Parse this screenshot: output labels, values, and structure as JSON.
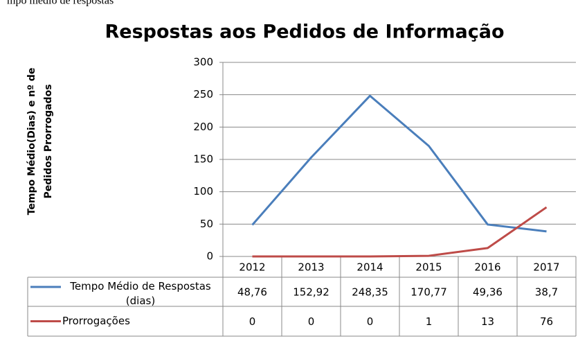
{
  "caption": "mpo médio de respostas",
  "chart_data": {
    "type": "line",
    "title": "Respostas aos Pedidos de Informação",
    "y_label": "Tempo Médio(Dias) e nº de Pedidos Prorrogados",
    "categories": [
      "2012",
      "2013",
      "2014",
      "2015",
      "2016",
      "2017"
    ],
    "series": [
      {
        "name": "Tempo Médio de Respostas (dias)",
        "color": "#4a7ebb",
        "values": [
          48.76,
          152.92,
          248.35,
          170.77,
          49.36,
          38.7
        ],
        "value_labels": [
          "48,76",
          "152,92",
          "248,35",
          "170,77",
          "49,36",
          "38,7"
        ]
      },
      {
        "name": "Prorrogações",
        "color": "#be4b48",
        "values": [
          0,
          0,
          0,
          1,
          13,
          76
        ]
      }
    ],
    "ylim": [
      0,
      300
    ],
    "yticks": [
      0,
      50,
      100,
      150,
      200,
      250,
      300
    ],
    "grid": true
  }
}
